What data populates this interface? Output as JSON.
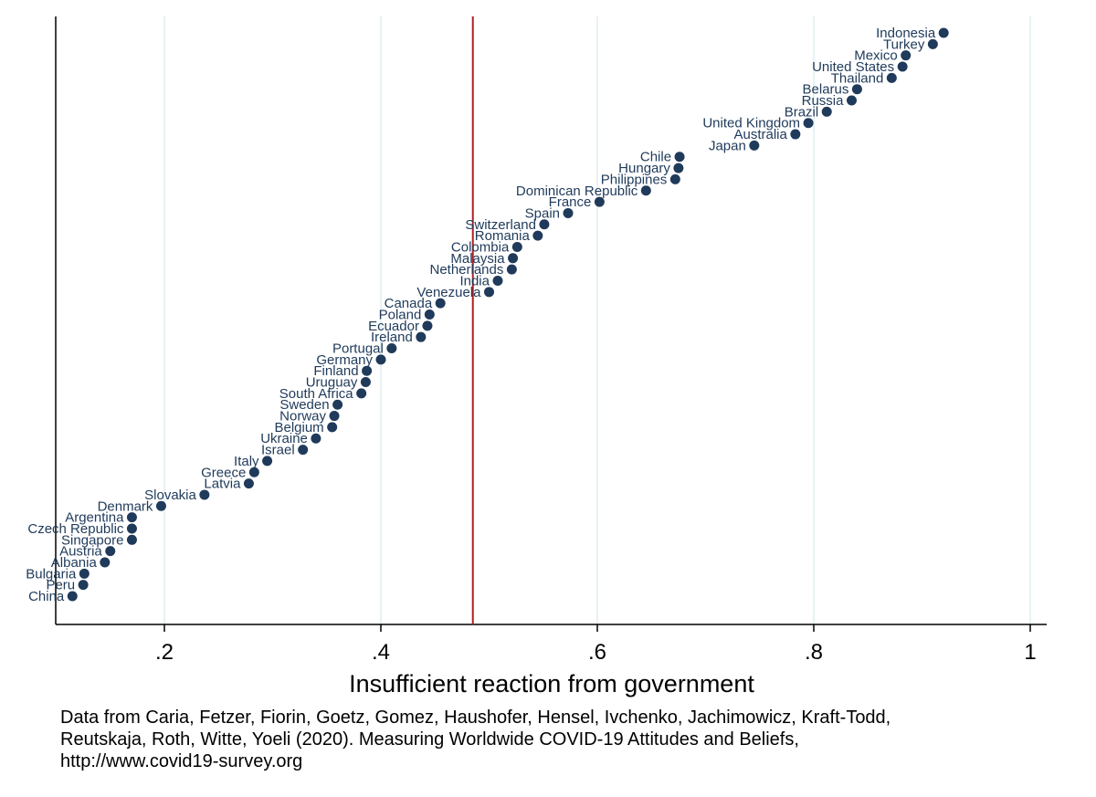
{
  "chart_data": {
    "type": "scatter",
    "title": "",
    "xlabel": "Insufficient reaction from government",
    "ylabel": "",
    "xlim": [
      0.1,
      1.0
    ],
    "x_ticks": [
      0.2,
      0.4,
      0.6,
      0.8,
      1.0
    ],
    "x_tick_labels": [
      ".2",
      ".4",
      ".6",
      ".8",
      "1"
    ],
    "grid": "vertical",
    "reference_line": {
      "x": 0.485,
      "color": "#b01f24"
    },
    "marker_color": "#1f3a5a",
    "line_color": "#c0392b",
    "points": [
      {
        "label": "Indonesia",
        "x": 0.92
      },
      {
        "label": "Turkey",
        "x": 0.91
      },
      {
        "label": "Mexico",
        "x": 0.885
      },
      {
        "label": "United States",
        "x": 0.882
      },
      {
        "label": "Thailand",
        "x": 0.872
      },
      {
        "label": "Belarus",
        "x": 0.84
      },
      {
        "label": "Russia",
        "x": 0.835
      },
      {
        "label": "Brazil",
        "x": 0.812
      },
      {
        "label": "United Kingdom",
        "x": 0.795
      },
      {
        "label": "Australia",
        "x": 0.783
      },
      {
        "label": "Japan",
        "x": 0.745
      },
      {
        "label": "Chile",
        "x": 0.676
      },
      {
        "label": "Hungary",
        "x": 0.675
      },
      {
        "label": "Philippines",
        "x": 0.672
      },
      {
        "label": "Dominican Republic",
        "x": 0.645
      },
      {
        "label": "France",
        "x": 0.602
      },
      {
        "label": "Spain",
        "x": 0.573
      },
      {
        "label": "Switzerland",
        "x": 0.551
      },
      {
        "label": "Romania",
        "x": 0.545
      },
      {
        "label": "Colombia",
        "x": 0.526
      },
      {
        "label": "Malaysia",
        "x": 0.522
      },
      {
        "label": "Netherlands",
        "x": 0.521
      },
      {
        "label": "India",
        "x": 0.508
      },
      {
        "label": "Venezuela",
        "x": 0.5
      },
      {
        "label": "Canada",
        "x": 0.455
      },
      {
        "label": "Poland",
        "x": 0.445
      },
      {
        "label": "Ecuador",
        "x": 0.443
      },
      {
        "label": "Ireland",
        "x": 0.437
      },
      {
        "label": "Portugal",
        "x": 0.41
      },
      {
        "label": "Germany",
        "x": 0.4
      },
      {
        "label": "Finland",
        "x": 0.387
      },
      {
        "label": "Uruguay",
        "x": 0.386
      },
      {
        "label": "South Africa",
        "x": 0.382
      },
      {
        "label": "Sweden",
        "x": 0.36
      },
      {
        "label": "Norway",
        "x": 0.357
      },
      {
        "label": "Belgium",
        "x": 0.355
      },
      {
        "label": "Ukraine",
        "x": 0.34
      },
      {
        "label": "Israel",
        "x": 0.328
      },
      {
        "label": "Italy",
        "x": 0.295
      },
      {
        "label": "Greece",
        "x": 0.283
      },
      {
        "label": "Latvia",
        "x": 0.278
      },
      {
        "label": "Slovakia",
        "x": 0.237
      },
      {
        "label": "Denmark",
        "x": 0.197
      },
      {
        "label": "Argentina",
        "x": 0.17
      },
      {
        "label": "Czech Republic",
        "x": 0.17
      },
      {
        "label": "Singapore",
        "x": 0.17
      },
      {
        "label": "Austria",
        "x": 0.15
      },
      {
        "label": "Albania",
        "x": 0.145
      },
      {
        "label": "Bulgaria",
        "x": 0.126
      },
      {
        "label": "Peru",
        "x": 0.125
      },
      {
        "label": "China",
        "x": 0.115
      }
    ]
  },
  "caption": {
    "line1": "Data from Caria, Fetzer, Fiorin, Goetz, Gomez, Haushofer, Hensel, Ivchenko, Jachimowicz, Kraft-Todd,",
    "line2": "Reutskaja, Roth, Witte, Yoeli (2020). Measuring Worldwide COVID-19 Attitudes and Beliefs,",
    "line3": "http://www.covid19-survey.org"
  }
}
